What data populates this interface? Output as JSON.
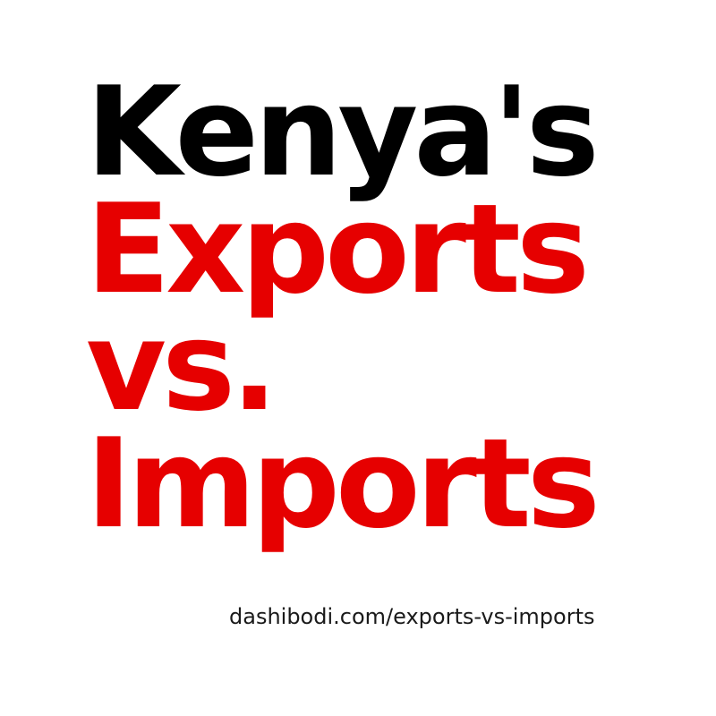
{
  "headline": {
    "line1": "Kenya's",
    "line2": "Exports",
    "line3": "vs.",
    "line4": "Imports"
  },
  "footer": {
    "url_text": "dashibodi.com/exports-vs-imports"
  },
  "colors": {
    "background": "#ffffff",
    "primary_text": "#000000",
    "accent": "#e60000"
  }
}
